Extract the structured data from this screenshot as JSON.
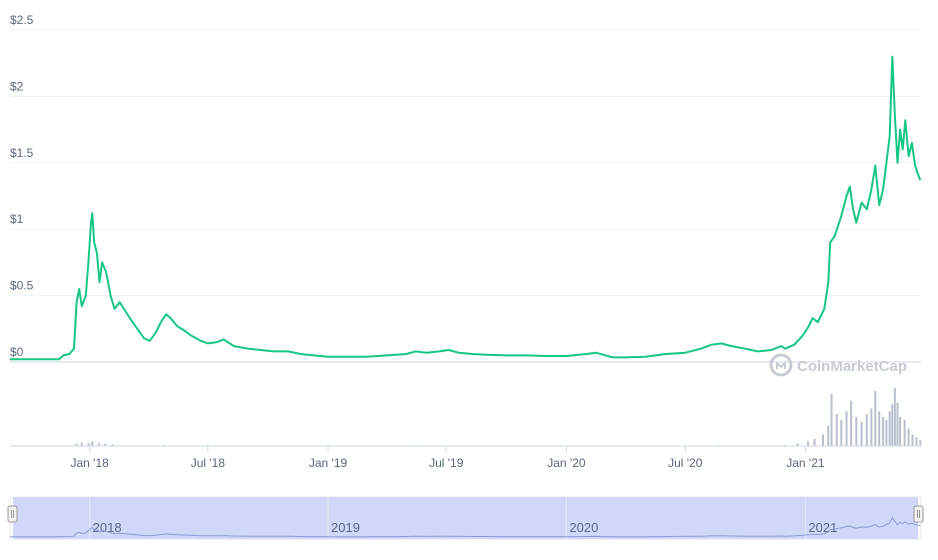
{
  "chart_data": {
    "type": "line",
    "title": "",
    "xlabel": "",
    "ylabel": "",
    "ylim": [
      0,
      2.5
    ],
    "y_ticks": [
      {
        "value": 2.5,
        "label": "$2.5"
      },
      {
        "value": 2,
        "label": "$2"
      },
      {
        "value": 1.5,
        "label": "$1.5"
      },
      {
        "value": 1,
        "label": "$1"
      },
      {
        "value": 0.5,
        "label": "$0.5"
      },
      {
        "value": 0,
        "label": "$0"
      }
    ],
    "x_ticks": [
      {
        "date": "2018-01-01",
        "label": "Jan '18"
      },
      {
        "date": "2018-07-01",
        "label": "Jul '18"
      },
      {
        "date": "2019-01-01",
        "label": "Jan '19"
      },
      {
        "date": "2019-07-01",
        "label": "Jul '19"
      },
      {
        "date": "2020-01-01",
        "label": "Jan '20"
      },
      {
        "date": "2020-07-01",
        "label": "Jul '20"
      },
      {
        "date": "2021-01-01",
        "label": "Jan '21"
      }
    ],
    "navigator_ticks": [
      {
        "date": "2018-01-01",
        "label": "2018"
      },
      {
        "date": "2019-01-01",
        "label": "2019"
      },
      {
        "date": "2020-01-01",
        "label": "2020"
      },
      {
        "date": "2021-01-01",
        "label": "2021"
      }
    ],
    "grid": true,
    "line_color": "#16c784",
    "volume_color": "#b8c0ce",
    "navigator_color": "#c9d0f8",
    "series": [
      {
        "points": [
          [
            "2017-09-01",
            0.02
          ],
          [
            "2017-10-01",
            0.02
          ],
          [
            "2017-11-01",
            0.02
          ],
          [
            "2017-11-15",
            0.02
          ],
          [
            "2017-11-22",
            0.05
          ],
          [
            "2017-12-01",
            0.06
          ],
          [
            "2017-12-08",
            0.1
          ],
          [
            "2017-12-12",
            0.45
          ],
          [
            "2017-12-16",
            0.55
          ],
          [
            "2017-12-20",
            0.42
          ],
          [
            "2017-12-26",
            0.5
          ],
          [
            "2017-12-30",
            0.75
          ],
          [
            "2018-01-03",
            1.05
          ],
          [
            "2018-01-05",
            1.12
          ],
          [
            "2018-01-08",
            0.9
          ],
          [
            "2018-01-12",
            0.82
          ],
          [
            "2018-01-16",
            0.6
          ],
          [
            "2018-01-20",
            0.75
          ],
          [
            "2018-01-26",
            0.68
          ],
          [
            "2018-02-02",
            0.5
          ],
          [
            "2018-02-08",
            0.4
          ],
          [
            "2018-02-16",
            0.45
          ],
          [
            "2018-02-25",
            0.38
          ],
          [
            "2018-03-05",
            0.32
          ],
          [
            "2018-03-15",
            0.25
          ],
          [
            "2018-03-25",
            0.18
          ],
          [
            "2018-04-03",
            0.16
          ],
          [
            "2018-04-12",
            0.22
          ],
          [
            "2018-04-20",
            0.3
          ],
          [
            "2018-04-28",
            0.36
          ],
          [
            "2018-05-05",
            0.33
          ],
          [
            "2018-05-15",
            0.27
          ],
          [
            "2018-05-25",
            0.24
          ],
          [
            "2018-06-05",
            0.2
          ],
          [
            "2018-06-20",
            0.16
          ],
          [
            "2018-07-01",
            0.14
          ],
          [
            "2018-07-15",
            0.15
          ],
          [
            "2018-07-25",
            0.17
          ],
          [
            "2018-08-10",
            0.12
          ],
          [
            "2018-09-01",
            0.1
          ],
          [
            "2018-09-20",
            0.09
          ],
          [
            "2018-10-10",
            0.08
          ],
          [
            "2018-11-01",
            0.08
          ],
          [
            "2018-11-20",
            0.06
          ],
          [
            "2018-12-10",
            0.05
          ],
          [
            "2019-01-01",
            0.04
          ],
          [
            "2019-02-01",
            0.04
          ],
          [
            "2019-03-01",
            0.04
          ],
          [
            "2019-04-01",
            0.05
          ],
          [
            "2019-05-01",
            0.06
          ],
          [
            "2019-05-15",
            0.08
          ],
          [
            "2019-06-01",
            0.07
          ],
          [
            "2019-06-20",
            0.08
          ],
          [
            "2019-07-05",
            0.09
          ],
          [
            "2019-07-20",
            0.07
          ],
          [
            "2019-08-10",
            0.06
          ],
          [
            "2019-09-01",
            0.055
          ],
          [
            "2019-10-01",
            0.05
          ],
          [
            "2019-11-01",
            0.05
          ],
          [
            "2019-12-01",
            0.045
          ],
          [
            "2020-01-01",
            0.045
          ],
          [
            "2020-02-01",
            0.06
          ],
          [
            "2020-02-15",
            0.07
          ],
          [
            "2020-03-12",
            0.035
          ],
          [
            "2020-04-01",
            0.035
          ],
          [
            "2020-05-01",
            0.04
          ],
          [
            "2020-06-01",
            0.06
          ],
          [
            "2020-07-01",
            0.07
          ],
          [
            "2020-07-25",
            0.1
          ],
          [
            "2020-08-10",
            0.13
          ],
          [
            "2020-08-25",
            0.14
          ],
          [
            "2020-09-10",
            0.12
          ],
          [
            "2020-10-01",
            0.1
          ],
          [
            "2020-10-20",
            0.08
          ],
          [
            "2020-11-10",
            0.09
          ],
          [
            "2020-11-25",
            0.12
          ],
          [
            "2020-12-01",
            0.1
          ],
          [
            "2020-12-15",
            0.13
          ],
          [
            "2020-12-28",
            0.2
          ],
          [
            "2021-01-05",
            0.26
          ],
          [
            "2021-01-12",
            0.33
          ],
          [
            "2021-01-20",
            0.3
          ],
          [
            "2021-01-30",
            0.4
          ],
          [
            "2021-02-05",
            0.6
          ],
          [
            "2021-02-08",
            0.9
          ],
          [
            "2021-02-15",
            0.95
          ],
          [
            "2021-02-25",
            1.1
          ],
          [
            "2021-03-05",
            1.25
          ],
          [
            "2021-03-10",
            1.32
          ],
          [
            "2021-03-15",
            1.15
          ],
          [
            "2021-03-20",
            1.05
          ],
          [
            "2021-03-28",
            1.2
          ],
          [
            "2021-04-05",
            1.15
          ],
          [
            "2021-04-12",
            1.3
          ],
          [
            "2021-04-18",
            1.48
          ],
          [
            "2021-04-24",
            1.18
          ],
          [
            "2021-04-30",
            1.3
          ],
          [
            "2021-05-05",
            1.5
          ],
          [
            "2021-05-10",
            1.7
          ],
          [
            "2021-05-14",
            2.3
          ],
          [
            "2021-05-18",
            1.85
          ],
          [
            "2021-05-22",
            1.5
          ],
          [
            "2021-05-26",
            1.75
          ],
          [
            "2021-05-30",
            1.6
          ],
          [
            "2021-06-03",
            1.82
          ],
          [
            "2021-06-08",
            1.55
          ],
          [
            "2021-06-13",
            1.65
          ],
          [
            "2021-06-18",
            1.48
          ],
          [
            "2021-06-22",
            1.42
          ],
          [
            "2021-06-26",
            1.37
          ]
        ]
      }
    ],
    "volume": [
      [
        "2017-12-12",
        0.04
      ],
      [
        "2017-12-20",
        0.06
      ],
      [
        "2017-12-30",
        0.05
      ],
      [
        "2018-01-05",
        0.08
      ],
      [
        "2018-01-15",
        0.05
      ],
      [
        "2018-01-25",
        0.04
      ],
      [
        "2018-02-05",
        0.03
      ],
      [
        "2018-04-25",
        0.02
      ],
      [
        "2019-05-15",
        0.01
      ],
      [
        "2020-08-20",
        0.015
      ],
      [
        "2020-12-01",
        0.02
      ],
      [
        "2020-12-20",
        0.04
      ],
      [
        "2021-01-05",
        0.08
      ],
      [
        "2021-01-15",
        0.12
      ],
      [
        "2021-01-28",
        0.2
      ],
      [
        "2021-02-05",
        0.35
      ],
      [
        "2021-02-10",
        0.9
      ],
      [
        "2021-02-18",
        0.55
      ],
      [
        "2021-02-25",
        0.45
      ],
      [
        "2021-03-05",
        0.6
      ],
      [
        "2021-03-12",
        0.78
      ],
      [
        "2021-03-20",
        0.5
      ],
      [
        "2021-03-28",
        0.42
      ],
      [
        "2021-04-05",
        0.55
      ],
      [
        "2021-04-12",
        0.65
      ],
      [
        "2021-04-18",
        0.95
      ],
      [
        "2021-04-24",
        0.6
      ],
      [
        "2021-04-30",
        0.5
      ],
      [
        "2021-05-05",
        0.45
      ],
      [
        "2021-05-10",
        0.6
      ],
      [
        "2021-05-14",
        0.72
      ],
      [
        "2021-05-18",
        1.0
      ],
      [
        "2021-05-22",
        0.75
      ],
      [
        "2021-05-26",
        0.5
      ],
      [
        "2021-06-02",
        0.45
      ],
      [
        "2021-06-08",
        0.3
      ],
      [
        "2021-06-14",
        0.2
      ],
      [
        "2021-06-20",
        0.15
      ],
      [
        "2021-06-26",
        0.1
      ]
    ]
  },
  "watermark": {
    "text": "CoinMarketCap",
    "icon": "coinmarketcap-logo-icon"
  }
}
